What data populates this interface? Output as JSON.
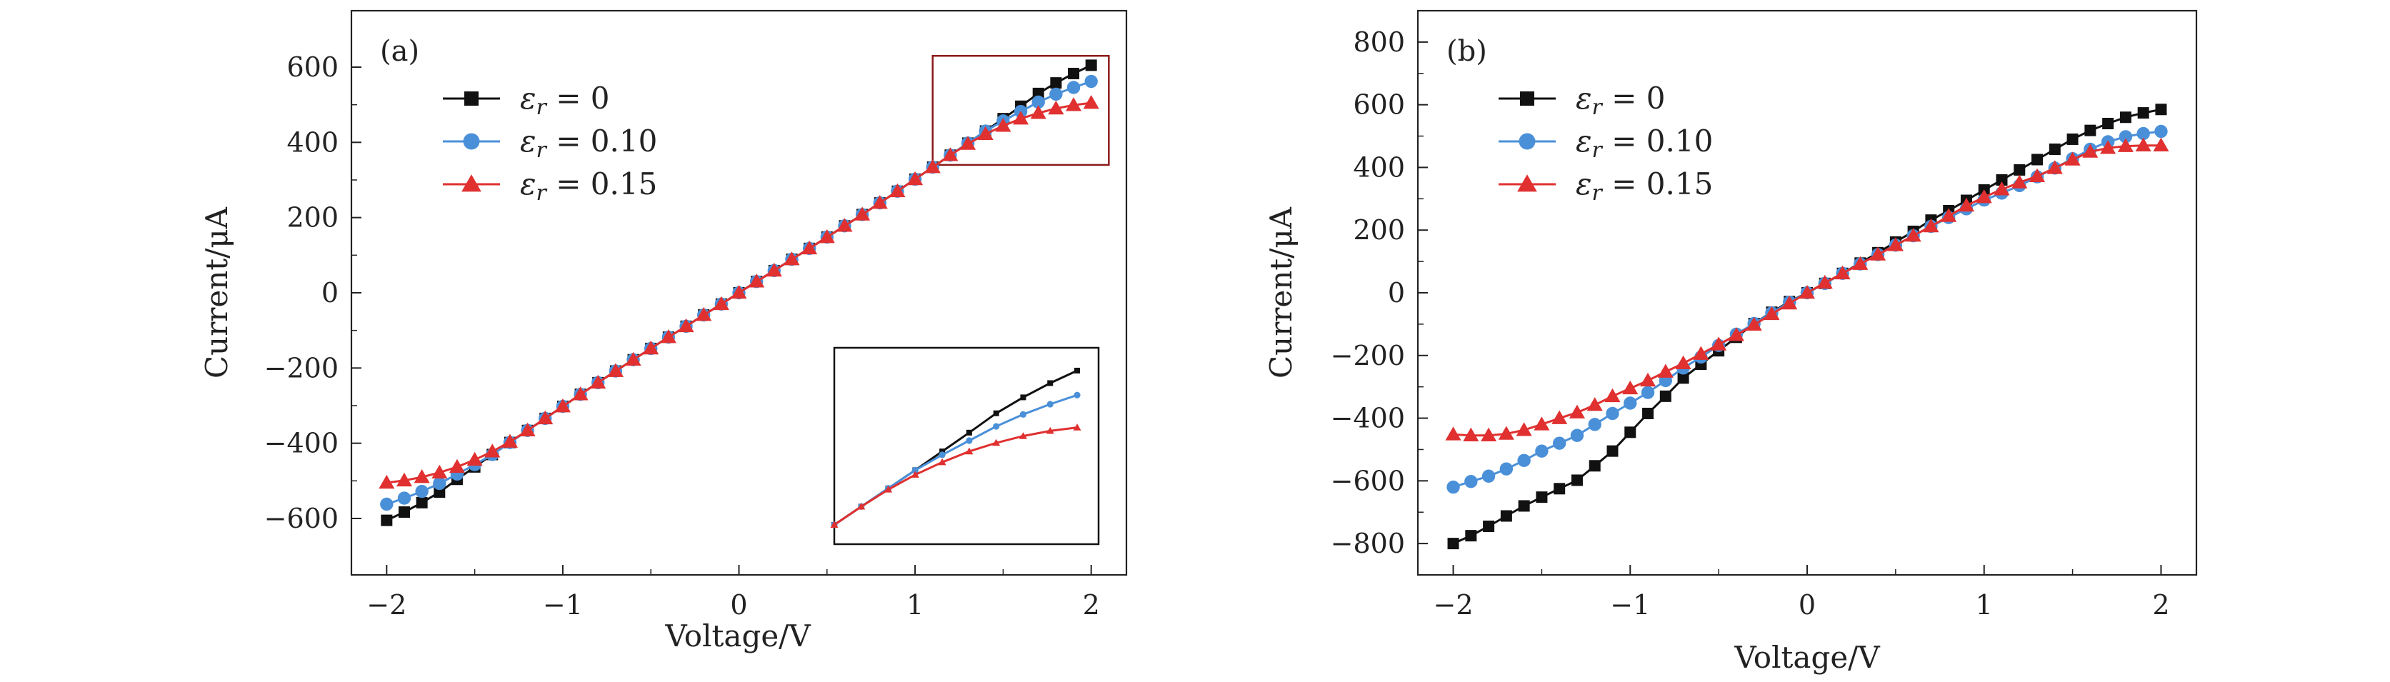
{
  "figure": {
    "panels": [
      {
        "label": "(a)"
      },
      {
        "label": "(b)"
      }
    ]
  },
  "colors": {
    "black": "#111111",
    "blue": "#4a90d9",
    "red": "#e03030",
    "zoom_box": "#8b1a1a",
    "axis": "#222222"
  },
  "chart_data": [
    {
      "type": "line",
      "panel": "(a)",
      "xlabel": "Voltage/V",
      "ylabel": "Current/μA",
      "xlim": [
        -2.2,
        2.2
      ],
      "ylim": [
        -750,
        750
      ],
      "xticks": [
        -2,
        -1,
        0,
        1,
        2
      ],
      "xtick_labels": [
        "−2",
        "−1",
        "0",
        "1",
        "2"
      ],
      "yticks": [
        -600,
        -400,
        -200,
        0,
        200,
        400,
        600
      ],
      "ytick_labels": [
        "−600",
        "−400",
        "−200",
        "0",
        "200",
        "400",
        "600"
      ],
      "legend_position": "top-left",
      "x": [
        -2.0,
        -1.9,
        -1.8,
        -1.7,
        -1.6,
        -1.5,
        -1.4,
        -1.3,
        -1.2,
        -1.1,
        -1.0,
        -0.9,
        -0.8,
        -0.7,
        -0.6,
        -0.5,
        -0.4,
        -0.3,
        -0.2,
        -0.1,
        0.0,
        0.1,
        0.2,
        0.3,
        0.4,
        0.5,
        0.6,
        0.7,
        0.8,
        0.9,
        1.0,
        1.1,
        1.2,
        1.3,
        1.4,
        1.5,
        1.6,
        1.7,
        1.8,
        1.9,
        2.0
      ],
      "series": [
        {
          "name": "εr = 0",
          "legend_symbol": "ε",
          "legend_sub": "r",
          "legend_value": " = 0",
          "color": "#111111",
          "marker": "square",
          "values": [
            -605,
            -583,
            -558,
            -530,
            -496,
            -463,
            -430,
            -398,
            -366,
            -334,
            -302,
            -270,
            -239,
            -208,
            -178,
            -148,
            -118,
            -89,
            -59,
            -30,
            0,
            30,
            59,
            89,
            118,
            148,
            178,
            208,
            239,
            270,
            302,
            334,
            366,
            398,
            430,
            463,
            496,
            530,
            558,
            583,
            605
          ]
        },
        {
          "name": "εr = 0.10",
          "legend_symbol": "ε",
          "legend_sub": "r",
          "legend_value": " = 0.10",
          "color": "#4a90d9",
          "marker": "circle",
          "values": [
            -562,
            -546,
            -528,
            -507,
            -482,
            -457,
            -430,
            -398,
            -366,
            -334,
            -302,
            -270,
            -239,
            -208,
            -178,
            -148,
            -118,
            -89,
            -59,
            -30,
            0,
            30,
            59,
            89,
            118,
            148,
            178,
            208,
            239,
            270,
            302,
            334,
            366,
            398,
            430,
            457,
            482,
            507,
            528,
            546,
            562
          ]
        },
        {
          "name": "εr = 0.15",
          "legend_symbol": "ε",
          "legend_sub": "r",
          "legend_value": " = 0.15",
          "color": "#e03030",
          "marker": "triangle",
          "values": [
            -505,
            -499,
            -490,
            -478,
            -463,
            -444,
            -422,
            -396,
            -366,
            -334,
            -302,
            -270,
            -239,
            -208,
            -178,
            -148,
            -118,
            -89,
            -59,
            -30,
            0,
            30,
            59,
            89,
            118,
            148,
            178,
            208,
            239,
            270,
            302,
            334,
            366,
            396,
            422,
            444,
            463,
            478,
            490,
            499,
            505
          ]
        }
      ],
      "zoom_region": {
        "xlim": [
          1.1,
          2.1
        ],
        "ylim": [
          340,
          630
        ]
      },
      "inset": {
        "xlim": [
          1.1,
          2.0
        ],
        "ylim": [
          300,
          620
        ],
        "position": "bottom-right"
      }
    },
    {
      "type": "line",
      "panel": "(b)",
      "xlabel": "Voltage/V",
      "ylabel": "Current/μA",
      "xlim": [
        -2.2,
        2.2
      ],
      "ylim": [
        -900,
        900
      ],
      "xticks": [
        -2,
        -1,
        0,
        1,
        2
      ],
      "xtick_labels": [
        "−2",
        "−1",
        "0",
        "1",
        "2"
      ],
      "yticks": [
        -800,
        -600,
        -400,
        -200,
        0,
        200,
        400,
        600,
        800
      ],
      "ytick_labels": [
        "−800",
        "−600",
        "−400",
        "−200",
        "0",
        "200",
        "400",
        "600",
        "800"
      ],
      "legend_position": "top-left",
      "x": [
        -2.0,
        -1.9,
        -1.8,
        -1.7,
        -1.6,
        -1.5,
        -1.4,
        -1.3,
        -1.2,
        -1.1,
        -1.0,
        -0.9,
        -0.8,
        -0.7,
        -0.6,
        -0.5,
        -0.4,
        -0.3,
        -0.2,
        -0.1,
        0.0,
        0.1,
        0.2,
        0.3,
        0.4,
        0.5,
        0.6,
        0.7,
        0.8,
        0.9,
        1.0,
        1.1,
        1.2,
        1.3,
        1.4,
        1.5,
        1.6,
        1.7,
        1.8,
        1.9,
        2.0
      ],
      "series": [
        {
          "name": "εr = 0",
          "legend_symbol": "ε",
          "legend_sub": "r",
          "legend_value": " = 0",
          "color": "#111111",
          "marker": "square",
          "values": [
            -800,
            -775,
            -745,
            -712,
            -680,
            -652,
            -625,
            -598,
            -552,
            -505,
            -445,
            -385,
            -330,
            -272,
            -228,
            -185,
            -142,
            -98,
            -62,
            -28,
            0,
            30,
            62,
            95,
            128,
            162,
            196,
            232,
            262,
            295,
            328,
            360,
            392,
            425,
            458,
            490,
            518,
            540,
            560,
            574,
            585
          ]
        },
        {
          "name": "εr = 0.10",
          "legend_symbol": "ε",
          "legend_sub": "r",
          "legend_value": " = 0.10",
          "color": "#4a90d9",
          "marker": "circle",
          "values": [
            -620,
            -602,
            -585,
            -562,
            -535,
            -505,
            -480,
            -455,
            -420,
            -385,
            -352,
            -318,
            -280,
            -240,
            -205,
            -168,
            -132,
            -98,
            -64,
            -30,
            0,
            30,
            62,
            92,
            122,
            152,
            182,
            212,
            240,
            268,
            296,
            318,
            342,
            370,
            398,
            428,
            458,
            482,
            498,
            508,
            515
          ]
        },
        {
          "name": "εr = 0.15",
          "legend_symbol": "ε",
          "legend_sub": "r",
          "legend_value": " = 0.15",
          "color": "#e03030",
          "marker": "triangle",
          "values": [
            -452,
            -455,
            -455,
            -450,
            -438,
            -420,
            -400,
            -382,
            -358,
            -330,
            -305,
            -280,
            -252,
            -225,
            -195,
            -165,
            -135,
            -102,
            -68,
            -34,
            0,
            32,
            62,
            92,
            122,
            152,
            182,
            212,
            245,
            278,
            305,
            330,
            352,
            372,
            398,
            425,
            450,
            462,
            468,
            470,
            470
          ]
        }
      ]
    }
  ]
}
